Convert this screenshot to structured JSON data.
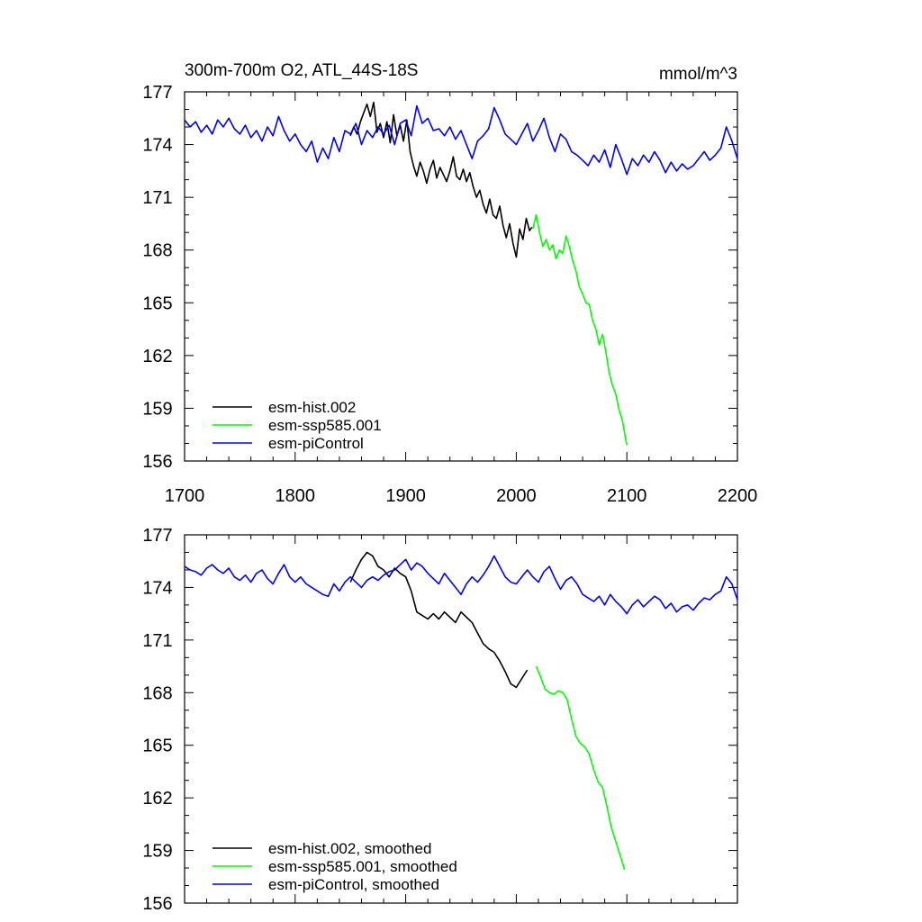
{
  "chart_data": [
    {
      "type": "line",
      "title": "300m-700m O2, ATL_44S-18S",
      "units": "mmol/m^3",
      "xlim": [
        1700,
        2200
      ],
      "ylim": [
        156,
        177
      ],
      "xticks": [
        1700,
        1800,
        1900,
        2000,
        2100,
        2200
      ],
      "yticks": [
        156,
        159,
        162,
        165,
        168,
        171,
        174,
        177
      ],
      "xtick_labels": [
        "1700",
        "1800",
        "1900",
        "2000",
        "2100",
        "2200"
      ],
      "ytick_labels": [
        "156",
        "159",
        "162",
        "165",
        "168",
        "171",
        "174",
        "177"
      ],
      "legend_position": "bottom-left",
      "series": [
        {
          "name": "esm-hist.002",
          "color": "#000000",
          "x": [
            1850,
            1853,
            1856,
            1859,
            1862,
            1865,
            1868,
            1871,
            1874,
            1877,
            1880,
            1883,
            1886,
            1889,
            1892,
            1895,
            1898,
            1901,
            1904,
            1907,
            1910,
            1913,
            1916,
            1919,
            1922,
            1925,
            1928,
            1931,
            1934,
            1937,
            1940,
            1943,
            1946,
            1949,
            1952,
            1955,
            1958,
            1961,
            1964,
            1967,
            1970,
            1973,
            1976,
            1979,
            1982,
            1985,
            1988,
            1991,
            1994,
            1997,
            2000,
            2003,
            2006,
            2009,
            2012,
            2014
          ],
          "y": [
            174.5,
            175.0,
            174.6,
            175.3,
            175.8,
            176.3,
            175.6,
            176.4,
            174.7,
            175.2,
            174.4,
            175.3,
            174.1,
            175.7,
            174.5,
            175.1,
            174.2,
            175.4,
            173.6,
            172.8,
            172.2,
            173.0,
            172.5,
            171.8,
            172.6,
            173.1,
            172.1,
            172.7,
            172.3,
            171.9,
            172.5,
            173.3,
            172.2,
            172.0,
            172.6,
            171.9,
            172.4,
            171.6,
            171.0,
            171.4,
            170.6,
            170.1,
            170.9,
            170.0,
            169.8,
            170.5,
            169.4,
            168.7,
            169.5,
            168.4,
            167.6,
            169.2,
            168.6,
            169.8,
            169.1,
            169.3
          ]
        },
        {
          "name": "esm-ssp585.001",
          "color": "#00ff00",
          "x": [
            2015,
            2018,
            2021,
            2024,
            2027,
            2030,
            2033,
            2036,
            2039,
            2042,
            2045,
            2048,
            2051,
            2054,
            2057,
            2060,
            2063,
            2066,
            2069,
            2072,
            2075,
            2078,
            2081,
            2084,
            2087,
            2090,
            2093,
            2096,
            2099,
            2100
          ],
          "y": [
            169.2,
            170.0,
            169.0,
            168.2,
            168.6,
            168.0,
            168.3,
            167.5,
            168.0,
            167.8,
            168.8,
            168.2,
            167.4,
            166.8,
            165.9,
            165.5,
            165.0,
            164.9,
            164.0,
            163.5,
            162.6,
            163.2,
            162.2,
            161.0,
            160.3,
            159.8,
            158.9,
            158.3,
            157.2,
            156.9
          ]
        },
        {
          "name": "esm-piControl",
          "color": "#0000ff",
          "x": [
            1700,
            1705,
            1710,
            1715,
            1720,
            1725,
            1730,
            1735,
            1740,
            1745,
            1750,
            1755,
            1760,
            1765,
            1770,
            1775,
            1780,
            1785,
            1790,
            1795,
            1800,
            1805,
            1810,
            1815,
            1820,
            1825,
            1830,
            1835,
            1840,
            1845,
            1850,
            1855,
            1860,
            1865,
            1870,
            1875,
            1880,
            1885,
            1890,
            1895,
            1900,
            1905,
            1910,
            1915,
            1920,
            1925,
            1930,
            1935,
            1940,
            1945,
            1950,
            1955,
            1960,
            1965,
            1970,
            1975,
            1980,
            1985,
            1990,
            1995,
            2000,
            2005,
            2010,
            2015,
            2020,
            2025,
            2030,
            2035,
            2040,
            2045,
            2050,
            2055,
            2060,
            2065,
            2070,
            2075,
            2080,
            2085,
            2090,
            2095,
            2100,
            2105,
            2110,
            2115,
            2120,
            2125,
            2130,
            2135,
            2140,
            2145,
            2150,
            2155,
            2160,
            2165,
            2170,
            2175,
            2180,
            2185,
            2190,
            2195,
            2200
          ],
          "y": [
            175.4,
            175.0,
            175.3,
            174.7,
            175.1,
            174.6,
            175.4,
            175.0,
            175.5,
            174.9,
            174.6,
            175.1,
            174.4,
            174.8,
            174.2,
            175.0,
            174.5,
            175.6,
            174.8,
            174.2,
            174.6,
            174.0,
            173.6,
            174.2,
            173.0,
            173.8,
            173.2,
            174.4,
            173.6,
            174.8,
            174.6,
            175.2,
            174.0,
            174.8,
            174.4,
            175.0,
            174.6,
            175.1,
            174.0,
            175.2,
            175.4,
            174.5,
            176.2,
            175.2,
            175.5,
            174.8,
            174.9,
            174.5,
            175.0,
            174.3,
            174.8,
            174.0,
            173.2,
            174.2,
            174.5,
            174.9,
            176.1,
            175.4,
            174.6,
            174.3,
            174.0,
            174.6,
            175.2,
            174.2,
            174.8,
            175.5,
            174.4,
            173.6,
            174.6,
            174.3,
            173.6,
            173.4,
            173.1,
            172.8,
            173.4,
            173.0,
            173.7,
            172.7,
            174.0,
            173.2,
            172.3,
            173.2,
            172.8,
            173.4,
            173.0,
            173.6,
            173.1,
            172.4,
            173.0,
            172.5,
            172.9,
            172.6,
            172.8,
            173.2,
            173.6,
            173.1,
            173.4,
            173.8,
            175.0,
            174.2,
            173.2
          ]
        }
      ]
    },
    {
      "type": "line",
      "xlim": [
        1700,
        2200
      ],
      "ylim": [
        156,
        177
      ],
      "xticks": [
        1700,
        1800,
        1900,
        2000,
        2100,
        2200
      ],
      "yticks": [
        156,
        159,
        162,
        165,
        168,
        171,
        174,
        177
      ],
      "ytick_labels": [
        "156",
        "159",
        "162",
        "165",
        "168",
        "171",
        "174",
        "177"
      ],
      "legend_position": "bottom-left",
      "series": [
        {
          "name": "esm-hist.002, smoothed",
          "color": "#000000",
          "x": [
            1850,
            1855,
            1860,
            1865,
            1870,
            1875,
            1880,
            1885,
            1890,
            1895,
            1900,
            1905,
            1910,
            1915,
            1920,
            1925,
            1930,
            1935,
            1940,
            1945,
            1950,
            1955,
            1960,
            1965,
            1970,
            1975,
            1980,
            1985,
            1990,
            1995,
            2000,
            2005,
            2010
          ],
          "y": [
            174.3,
            175.0,
            175.6,
            176.0,
            175.8,
            175.2,
            175.0,
            174.6,
            175.1,
            174.8,
            174.6,
            173.8,
            172.6,
            172.4,
            172.2,
            172.5,
            172.2,
            172.6,
            172.3,
            172.0,
            172.6,
            172.3,
            172.0,
            171.4,
            170.8,
            170.5,
            170.3,
            169.8,
            169.2,
            168.5,
            168.3,
            168.8,
            169.3
          ]
        },
        {
          "name": "esm-ssp585.001, smoothed",
          "color": "#00ff00",
          "x": [
            2018,
            2022,
            2026,
            2030,
            2034,
            2038,
            2042,
            2046,
            2050,
            2054,
            2058,
            2062,
            2066,
            2070,
            2074,
            2078,
            2082,
            2086,
            2090,
            2094,
            2098
          ],
          "y": [
            169.5,
            168.9,
            168.2,
            168.0,
            167.9,
            168.1,
            168.0,
            167.6,
            166.5,
            165.5,
            165.1,
            164.9,
            164.5,
            163.6,
            162.9,
            162.6,
            161.5,
            160.3,
            159.5,
            158.7,
            157.9
          ]
        },
        {
          "name": "esm-piControl, smoothed",
          "color": "#0000ff",
          "x": [
            1700,
            1705,
            1710,
            1715,
            1720,
            1725,
            1730,
            1735,
            1740,
            1745,
            1750,
            1755,
            1760,
            1765,
            1770,
            1775,
            1780,
            1785,
            1790,
            1795,
            1800,
            1805,
            1810,
            1815,
            1820,
            1825,
            1830,
            1835,
            1840,
            1845,
            1850,
            1855,
            1860,
            1865,
            1870,
            1875,
            1880,
            1885,
            1890,
            1895,
            1900,
            1905,
            1910,
            1915,
            1920,
            1925,
            1930,
            1935,
            1940,
            1945,
            1950,
            1955,
            1960,
            1965,
            1970,
            1975,
            1980,
            1985,
            1990,
            1995,
            2000,
            2005,
            2010,
            2015,
            2020,
            2025,
            2030,
            2035,
            2040,
            2045,
            2050,
            2055,
            2060,
            2065,
            2070,
            2075,
            2080,
            2085,
            2090,
            2095,
            2100,
            2105,
            2110,
            2115,
            2120,
            2125,
            2130,
            2135,
            2140,
            2145,
            2150,
            2155,
            2160,
            2165,
            2170,
            2175,
            2180,
            2185,
            2190,
            2195,
            2200
          ],
          "y": [
            175.2,
            175.0,
            174.9,
            174.7,
            175.1,
            175.3,
            175.0,
            174.8,
            175.1,
            174.6,
            174.4,
            174.7,
            174.3,
            174.8,
            175.0,
            174.5,
            174.2,
            174.8,
            175.3,
            174.6,
            174.3,
            174.6,
            174.2,
            174.0,
            173.8,
            173.6,
            173.5,
            174.2,
            173.8,
            174.3,
            174.6,
            174.3,
            174.0,
            174.4,
            174.6,
            174.4,
            174.7,
            174.9,
            175.0,
            175.3,
            175.6,
            175.0,
            175.4,
            175.2,
            174.8,
            174.5,
            174.2,
            174.8,
            174.4,
            174.0,
            173.6,
            174.2,
            174.6,
            174.3,
            174.7,
            175.2,
            175.8,
            175.2,
            174.6,
            174.3,
            174.2,
            174.6,
            175.0,
            174.6,
            174.3,
            174.9,
            175.2,
            174.5,
            173.9,
            174.4,
            174.6,
            174.2,
            173.6,
            173.4,
            173.2,
            173.5,
            173.0,
            173.6,
            173.2,
            172.9,
            172.5,
            173.0,
            173.3,
            172.9,
            173.2,
            173.5,
            173.3,
            172.8,
            173.1,
            172.6,
            172.9,
            173.0,
            172.7,
            173.1,
            173.4,
            173.3,
            173.6,
            173.8,
            174.6,
            174.2,
            173.3
          ]
        }
      ]
    }
  ]
}
